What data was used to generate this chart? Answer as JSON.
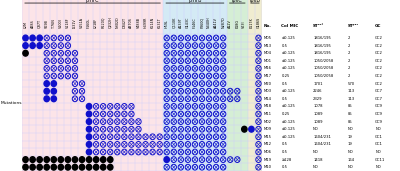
{
  "pmrC_label": "pmrC",
  "pmrB_label": "pmrB",
  "lpxC_label": "lpxC",
  "lpxD_label": "lpxD",
  "pmrC_cols": [
    "L2M",
    "A28S",
    "Q37T",
    "V59B",
    "T76N",
    "V100I",
    "V118F",
    "I131V",
    "V151A",
    "F160L",
    "L218F",
    "R220Q",
    "Q232H",
    "N302D",
    "D342T",
    "A370S",
    "V488B",
    "H499R",
    "K514N",
    "K531T"
  ],
  "pmrB_cols": [
    "H59L",
    "Q110K",
    "A139T",
    "G143C",
    "F146C",
    "P360Q",
    "N440H",
    "A441V",
    "N287D"
  ],
  "lpxC_cols": [
    "A12V",
    "E18G",
    "V63I"
  ],
  "lpxD_cols": [
    "E117K",
    "G186S"
  ],
  "row_labels": [
    "M05",
    "M13",
    "M04",
    "M01",
    "M16",
    "M17",
    "M20",
    "M03",
    "M14",
    "M18",
    "M11",
    "M02",
    "M09",
    "M15",
    "M12",
    "M06",
    "M19",
    "M10"
  ],
  "col_mic": [
    "≤0.125",
    "0.5",
    "≤0.125",
    "≤0.125",
    "≤0.125",
    "0.25",
    "0.5",
    "≤0.125",
    "0.5",
    "≤0.125",
    "0.25",
    "≤0.125",
    "≤0.125",
    "≤0.125",
    "0.5",
    "0.5",
    "≥128",
    "0.5"
  ],
  "st_oxf": [
    "1816/195",
    "1816/195",
    "1816/195",
    "1050/2058",
    "1050/2058",
    "1050/2058",
    "1701",
    "2246",
    "2329",
    "1078",
    "1089",
    "1089",
    "ND",
    "1604/231",
    "1604/231",
    "ND",
    "1418",
    "ND"
  ],
  "st_pas": [
    "2",
    "2",
    "2",
    "2",
    "2",
    "2",
    "570",
    "113",
    "113",
    "85",
    "85",
    "85",
    "ND",
    "19",
    "19",
    "ND",
    "164",
    "ND"
  ],
  "gc": [
    "GC2",
    "GC2",
    "GC2",
    "GC2",
    "GC2",
    "GC2",
    "GC2",
    "GC7",
    "GC7",
    "GC9",
    "GC9",
    "GC9",
    "ND",
    "GC1",
    "GC1",
    "ND",
    "GC11",
    "ND"
  ],
  "pmrC_bg": "#fce4e8",
  "pmrB_bg": "#d4eaf5",
  "lpxC_bg": "#d5eed5",
  "lpxD_bg": "#f0ecd0",
  "grid_color": "#ccccff",
  "blue_color": "#1010cc",
  "black_color": "#000000",
  "white_color": "#ffffff",
  "row_dots": {
    "M05": [
      [
        0,
        "B"
      ],
      [
        1,
        "B"
      ],
      [
        2,
        "B"
      ],
      [
        3,
        "O"
      ],
      [
        4,
        "O"
      ],
      [
        5,
        "O"
      ],
      [
        6,
        "O"
      ],
      [
        20,
        "O"
      ],
      [
        21,
        "O"
      ],
      [
        22,
        "O"
      ],
      [
        23,
        "O"
      ],
      [
        24,
        "O"
      ],
      [
        25,
        "O"
      ],
      [
        26,
        "O"
      ],
      [
        27,
        "O"
      ],
      [
        28,
        "O"
      ],
      [
        33,
        "O"
      ]
    ],
    "M13": [
      [
        0,
        "B"
      ],
      [
        1,
        "B"
      ],
      [
        2,
        "B"
      ],
      [
        3,
        "O"
      ],
      [
        4,
        "O"
      ],
      [
        5,
        "O"
      ],
      [
        6,
        "O"
      ],
      [
        20,
        "O"
      ],
      [
        21,
        "O"
      ],
      [
        22,
        "O"
      ],
      [
        23,
        "O"
      ],
      [
        24,
        "O"
      ],
      [
        25,
        "O"
      ],
      [
        26,
        "O"
      ],
      [
        27,
        "O"
      ],
      [
        28,
        "O"
      ],
      [
        33,
        "O"
      ]
    ],
    "M04": [
      [
        0,
        "K"
      ],
      [
        3,
        "O"
      ],
      [
        4,
        "O"
      ],
      [
        5,
        "O"
      ],
      [
        6,
        "O"
      ],
      [
        7,
        "O"
      ],
      [
        20,
        "O"
      ],
      [
        21,
        "O"
      ],
      [
        22,
        "O"
      ],
      [
        23,
        "O"
      ],
      [
        24,
        "O"
      ],
      [
        25,
        "O"
      ],
      [
        26,
        "O"
      ],
      [
        27,
        "O"
      ],
      [
        28,
        "O"
      ],
      [
        33,
        "O"
      ]
    ],
    "M01": [
      [
        3,
        "O"
      ],
      [
        4,
        "O"
      ],
      [
        5,
        "O"
      ],
      [
        6,
        "O"
      ],
      [
        7,
        "O"
      ],
      [
        20,
        "O"
      ],
      [
        21,
        "O"
      ],
      [
        22,
        "O"
      ],
      [
        23,
        "O"
      ],
      [
        24,
        "O"
      ],
      [
        25,
        "O"
      ],
      [
        26,
        "O"
      ],
      [
        27,
        "O"
      ],
      [
        28,
        "O"
      ],
      [
        33,
        "O"
      ]
    ],
    "M16": [
      [
        3,
        "O"
      ],
      [
        4,
        "O"
      ],
      [
        5,
        "O"
      ],
      [
        6,
        "O"
      ],
      [
        7,
        "O"
      ],
      [
        20,
        "O"
      ],
      [
        21,
        "O"
      ],
      [
        22,
        "O"
      ],
      [
        23,
        "O"
      ],
      [
        24,
        "O"
      ],
      [
        25,
        "O"
      ],
      [
        26,
        "O"
      ],
      [
        27,
        "O"
      ],
      [
        28,
        "O"
      ],
      [
        33,
        "O"
      ]
    ],
    "M17": [
      [
        3,
        "O"
      ],
      [
        4,
        "O"
      ],
      [
        5,
        "O"
      ],
      [
        6,
        "O"
      ],
      [
        7,
        "O"
      ],
      [
        20,
        "O"
      ],
      [
        21,
        "O"
      ],
      [
        22,
        "O"
      ],
      [
        23,
        "O"
      ],
      [
        24,
        "O"
      ],
      [
        25,
        "O"
      ],
      [
        26,
        "O"
      ],
      [
        27,
        "O"
      ],
      [
        28,
        "O"
      ],
      [
        33,
        "O"
      ]
    ],
    "M20": [
      [
        3,
        "B"
      ],
      [
        4,
        "B"
      ],
      [
        7,
        "O"
      ],
      [
        8,
        "O"
      ],
      [
        20,
        "O"
      ],
      [
        21,
        "O"
      ],
      [
        22,
        "O"
      ],
      [
        23,
        "O"
      ],
      [
        24,
        "O"
      ],
      [
        25,
        "O"
      ],
      [
        26,
        "O"
      ],
      [
        27,
        "O"
      ],
      [
        28,
        "O"
      ],
      [
        33,
        "O"
      ]
    ],
    "M03": [
      [
        3,
        "B"
      ],
      [
        4,
        "B"
      ],
      [
        7,
        "O"
      ],
      [
        8,
        "O"
      ],
      [
        20,
        "O"
      ],
      [
        21,
        "O"
      ],
      [
        22,
        "O"
      ],
      [
        23,
        "O"
      ],
      [
        24,
        "O"
      ],
      [
        25,
        "O"
      ],
      [
        26,
        "O"
      ],
      [
        27,
        "O"
      ],
      [
        28,
        "O"
      ],
      [
        29,
        "O"
      ],
      [
        30,
        "O"
      ],
      [
        33,
        "O"
      ]
    ],
    "M14": [
      [
        3,
        "B"
      ],
      [
        4,
        "B"
      ],
      [
        7,
        "O"
      ],
      [
        8,
        "O"
      ],
      [
        20,
        "O"
      ],
      [
        21,
        "O"
      ],
      [
        22,
        "O"
      ],
      [
        23,
        "O"
      ],
      [
        24,
        "O"
      ],
      [
        25,
        "O"
      ],
      [
        26,
        "O"
      ],
      [
        27,
        "O"
      ],
      [
        28,
        "O"
      ],
      [
        29,
        "O"
      ],
      [
        30,
        "O"
      ],
      [
        33,
        "O"
      ]
    ],
    "M18": [
      [
        9,
        "B"
      ],
      [
        10,
        "O"
      ],
      [
        11,
        "O"
      ],
      [
        12,
        "O"
      ],
      [
        13,
        "O"
      ],
      [
        14,
        "O"
      ],
      [
        15,
        "O"
      ],
      [
        20,
        "O"
      ],
      [
        21,
        "O"
      ],
      [
        22,
        "O"
      ],
      [
        23,
        "O"
      ],
      [
        24,
        "O"
      ],
      [
        25,
        "O"
      ],
      [
        26,
        "O"
      ],
      [
        27,
        "O"
      ],
      [
        28,
        "O"
      ],
      [
        33,
        "O"
      ]
    ],
    "M11": [
      [
        9,
        "B"
      ],
      [
        10,
        "O"
      ],
      [
        11,
        "O"
      ],
      [
        12,
        "O"
      ],
      [
        13,
        "O"
      ],
      [
        14,
        "O"
      ],
      [
        15,
        "O"
      ],
      [
        20,
        "O"
      ],
      [
        21,
        "O"
      ],
      [
        22,
        "O"
      ],
      [
        23,
        "O"
      ],
      [
        24,
        "O"
      ],
      [
        25,
        "O"
      ],
      [
        26,
        "O"
      ],
      [
        27,
        "O"
      ],
      [
        28,
        "O"
      ],
      [
        33,
        "O"
      ]
    ],
    "M02": [
      [
        9,
        "B"
      ],
      [
        10,
        "O"
      ],
      [
        11,
        "O"
      ],
      [
        12,
        "O"
      ],
      [
        13,
        "O"
      ],
      [
        14,
        "O"
      ],
      [
        15,
        "O"
      ],
      [
        16,
        "O"
      ],
      [
        20,
        "O"
      ],
      [
        21,
        "O"
      ],
      [
        22,
        "O"
      ],
      [
        23,
        "O"
      ],
      [
        24,
        "O"
      ],
      [
        25,
        "O"
      ],
      [
        26,
        "O"
      ],
      [
        27,
        "O"
      ],
      [
        28,
        "O"
      ],
      [
        33,
        "O"
      ]
    ],
    "M09": [
      [
        9,
        "B"
      ],
      [
        10,
        "O"
      ],
      [
        11,
        "O"
      ],
      [
        12,
        "O"
      ],
      [
        13,
        "O"
      ],
      [
        14,
        "O"
      ],
      [
        15,
        "O"
      ],
      [
        16,
        "O"
      ],
      [
        20,
        "O"
      ],
      [
        21,
        "O"
      ],
      [
        22,
        "O"
      ],
      [
        23,
        "O"
      ],
      [
        24,
        "O"
      ],
      [
        25,
        "O"
      ],
      [
        26,
        "O"
      ],
      [
        27,
        "O"
      ],
      [
        28,
        "O"
      ],
      [
        31,
        "K"
      ],
      [
        32,
        "B"
      ],
      [
        33,
        "O"
      ]
    ],
    "M15": [
      [
        9,
        "B"
      ],
      [
        10,
        "O"
      ],
      [
        11,
        "O"
      ],
      [
        12,
        "O"
      ],
      [
        13,
        "O"
      ],
      [
        14,
        "O"
      ],
      [
        15,
        "O"
      ],
      [
        16,
        "O"
      ],
      [
        17,
        "O"
      ],
      [
        18,
        "O"
      ],
      [
        19,
        "O"
      ],
      [
        20,
        "O"
      ],
      [
        21,
        "O"
      ],
      [
        22,
        "O"
      ],
      [
        23,
        "O"
      ],
      [
        24,
        "O"
      ],
      [
        25,
        "O"
      ],
      [
        26,
        "O"
      ],
      [
        27,
        "O"
      ],
      [
        28,
        "O"
      ],
      [
        33,
        "O"
      ]
    ],
    "M12": [
      [
        9,
        "B"
      ],
      [
        10,
        "O"
      ],
      [
        11,
        "O"
      ],
      [
        12,
        "O"
      ],
      [
        13,
        "O"
      ],
      [
        14,
        "O"
      ],
      [
        15,
        "O"
      ],
      [
        16,
        "O"
      ],
      [
        17,
        "O"
      ],
      [
        18,
        "O"
      ],
      [
        19,
        "O"
      ],
      [
        20,
        "O"
      ],
      [
        21,
        "O"
      ],
      [
        22,
        "O"
      ],
      [
        23,
        "O"
      ],
      [
        24,
        "O"
      ],
      [
        25,
        "O"
      ],
      [
        26,
        "O"
      ],
      [
        27,
        "O"
      ],
      [
        28,
        "O"
      ],
      [
        33,
        "O"
      ]
    ],
    "M06": [
      [
        9,
        "B"
      ],
      [
        10,
        "O"
      ],
      [
        11,
        "O"
      ],
      [
        12,
        "O"
      ],
      [
        13,
        "O"
      ],
      [
        14,
        "O"
      ],
      [
        15,
        "O"
      ],
      [
        16,
        "O"
      ],
      [
        17,
        "O"
      ],
      [
        18,
        "O"
      ],
      [
        19,
        "O"
      ],
      [
        20,
        "O"
      ],
      [
        21,
        "O"
      ],
      [
        22,
        "O"
      ],
      [
        23,
        "O"
      ],
      [
        24,
        "O"
      ],
      [
        25,
        "O"
      ],
      [
        26,
        "O"
      ],
      [
        27,
        "O"
      ],
      [
        28,
        "O"
      ],
      [
        33,
        "O"
      ]
    ],
    "M19": [
      [
        0,
        "K"
      ],
      [
        1,
        "K"
      ],
      [
        2,
        "K"
      ],
      [
        3,
        "K"
      ],
      [
        4,
        "K"
      ],
      [
        5,
        "K"
      ],
      [
        6,
        "K"
      ],
      [
        7,
        "K"
      ],
      [
        8,
        "K"
      ],
      [
        9,
        "K"
      ],
      [
        10,
        "K"
      ],
      [
        11,
        "K"
      ],
      [
        12,
        "K"
      ],
      [
        20,
        "B"
      ],
      [
        21,
        "O"
      ],
      [
        22,
        "O"
      ],
      [
        23,
        "O"
      ],
      [
        24,
        "O"
      ],
      [
        25,
        "O"
      ],
      [
        26,
        "O"
      ],
      [
        27,
        "O"
      ],
      [
        28,
        "O"
      ],
      [
        29,
        "O"
      ],
      [
        30,
        "O"
      ],
      [
        33,
        "O"
      ]
    ],
    "M10": [
      [
        0,
        "K"
      ],
      [
        1,
        "K"
      ],
      [
        2,
        "K"
      ],
      [
        3,
        "K"
      ],
      [
        4,
        "K"
      ],
      [
        5,
        "K"
      ],
      [
        6,
        "K"
      ],
      [
        7,
        "K"
      ],
      [
        8,
        "K"
      ],
      [
        9,
        "K"
      ],
      [
        10,
        "K"
      ],
      [
        11,
        "K"
      ],
      [
        12,
        "K"
      ],
      [
        20,
        "O"
      ],
      [
        21,
        "O"
      ],
      [
        22,
        "O"
      ],
      [
        23,
        "O"
      ],
      [
        24,
        "O"
      ],
      [
        25,
        "O"
      ],
      [
        26,
        "O"
      ],
      [
        27,
        "O"
      ],
      [
        28,
        "O"
      ],
      [
        33,
        "O"
      ]
    ]
  }
}
